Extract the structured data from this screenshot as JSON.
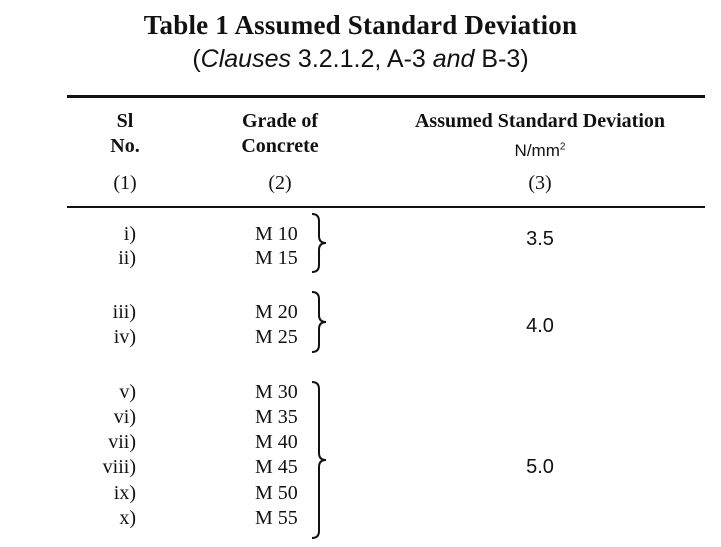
{
  "title": "Table 1 Assumed Standard Deviation",
  "subtitle": {
    "open": "(",
    "clauses_word": "Clauses",
    "clause_refs": " 3.2.1.2, A-3 ",
    "and_word": "and",
    "last_ref": " B-3)"
  },
  "header": {
    "col1_line1": "Sl",
    "col1_line2": "No.",
    "col2_line1": "Grade of",
    "col2_line2": "Concrete",
    "col3": "Assumed Standard Deviation",
    "col3_unit": "N/mm",
    "col3_unit_sup": "2",
    "col_numbers": [
      "(1)",
      "(2)",
      "(3)"
    ]
  },
  "rows": [
    {
      "sl": "i)",
      "grade": "M 10"
    },
    {
      "sl": "ii)",
      "grade": "M 15"
    },
    {
      "sl": "iii)",
      "grade": "M 20"
    },
    {
      "sl": "iv)",
      "grade": "M 25"
    },
    {
      "sl": "v)",
      "grade": "M 30"
    },
    {
      "sl": "vi)",
      "grade": "M 35"
    },
    {
      "sl": "vii)",
      "grade": "M 40"
    },
    {
      "sl": "viii)",
      "grade": "M 45"
    },
    {
      "sl": "ix)",
      "grade": "M 50"
    },
    {
      "sl": "x)",
      "grade": "M 55"
    }
  ],
  "groups": [
    {
      "sd": "3.5"
    },
    {
      "sd": "4.0"
    },
    {
      "sd": "5.0"
    }
  ]
}
